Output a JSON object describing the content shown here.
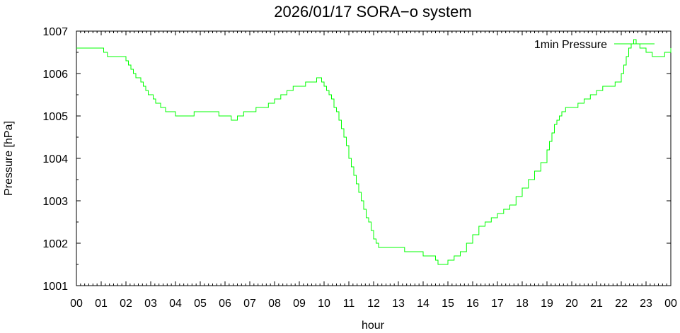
{
  "chart_data": {
    "type": "line",
    "title": "2026/01/17 SORA−o system",
    "xlabel": "hour",
    "ylabel": "Pressure [hPa]",
    "xlim": [
      0,
      24
    ],
    "ylim": [
      1001,
      1007
    ],
    "x_tick_labels": [
      "00",
      "01",
      "02",
      "03",
      "04",
      "05",
      "06",
      "07",
      "08",
      "09",
      "10",
      "11",
      "12",
      "13",
      "14",
      "15",
      "16",
      "17",
      "18",
      "19",
      "20",
      "21",
      "22",
      "23",
      "00"
    ],
    "y_ticks": [
      1001,
      1002,
      1003,
      1004,
      1005,
      1006,
      1007
    ],
    "legend_position": "top-right",
    "grid": false,
    "series": [
      {
        "name": "1min Pressure",
        "color": "#00ff00",
        "step": true,
        "x": [
          0,
          0.25,
          0.5,
          0.75,
          1.0,
          1.1,
          1.25,
          1.5,
          1.75,
          2.0,
          2.1,
          2.2,
          2.3,
          2.4,
          2.5,
          2.6,
          2.7,
          2.8,
          2.9,
          3.0,
          3.1,
          3.2,
          3.3,
          3.4,
          3.5,
          3.6,
          3.7,
          3.8,
          3.9,
          4.0,
          4.25,
          4.5,
          4.75,
          5.0,
          5.25,
          5.5,
          5.75,
          6.0,
          6.25,
          6.5,
          6.75,
          7.0,
          7.25,
          7.5,
          7.75,
          8.0,
          8.25,
          8.5,
          8.75,
          9.0,
          9.25,
          9.5,
          9.7,
          9.9,
          10.0,
          10.1,
          10.2,
          10.3,
          10.4,
          10.5,
          10.6,
          10.7,
          10.8,
          10.9,
          11.0,
          11.1,
          11.2,
          11.3,
          11.4,
          11.5,
          11.6,
          11.7,
          11.8,
          11.9,
          12.0,
          12.1,
          12.2,
          12.3,
          12.4,
          12.5,
          12.6,
          12.7,
          12.8,
          13.0,
          13.25,
          13.5,
          13.75,
          14.0,
          14.25,
          14.5,
          14.6,
          14.75,
          14.9,
          15.0,
          15.25,
          15.5,
          15.75,
          16.0,
          16.25,
          16.5,
          16.75,
          17.0,
          17.25,
          17.5,
          17.75,
          18.0,
          18.25,
          18.5,
          18.75,
          19.0,
          19.1,
          19.2,
          19.3,
          19.4,
          19.5,
          19.6,
          19.75,
          20.0,
          20.25,
          20.5,
          20.75,
          21.0,
          21.25,
          21.5,
          21.75,
          22.0,
          22.1,
          22.2,
          22.3,
          22.4,
          22.5,
          22.6,
          22.75,
          23.0,
          23.25,
          23.5,
          23.75,
          24.0
        ],
        "values": [
          1006.6,
          1006.6,
          1006.6,
          1006.6,
          1006.6,
          1006.5,
          1006.4,
          1006.4,
          1006.4,
          1006.3,
          1006.2,
          1006.1,
          1006.0,
          1005.9,
          1005.9,
          1005.8,
          1005.7,
          1005.6,
          1005.5,
          1005.5,
          1005.4,
          1005.3,
          1005.3,
          1005.2,
          1005.2,
          1005.1,
          1005.1,
          1005.1,
          1005.1,
          1005.0,
          1005.0,
          1005.0,
          1005.1,
          1005.1,
          1005.1,
          1005.1,
          1005.0,
          1005.0,
          1004.9,
          1005.0,
          1005.1,
          1005.1,
          1005.2,
          1005.2,
          1005.3,
          1005.4,
          1005.5,
          1005.6,
          1005.7,
          1005.7,
          1005.8,
          1005.8,
          1005.9,
          1005.8,
          1005.7,
          1005.6,
          1005.5,
          1005.4,
          1005.2,
          1005.1,
          1004.9,
          1004.7,
          1004.5,
          1004.3,
          1004.0,
          1003.8,
          1003.6,
          1003.4,
          1003.2,
          1003.0,
          1002.8,
          1002.6,
          1002.5,
          1002.3,
          1002.1,
          1002.0,
          1001.9,
          1001.9,
          1001.9,
          1001.9,
          1001.9,
          1001.9,
          1001.9,
          1001.9,
          1001.8,
          1001.8,
          1001.8,
          1001.7,
          1001.7,
          1001.6,
          1001.5,
          1001.5,
          1001.5,
          1001.6,
          1001.7,
          1001.8,
          1002.0,
          1002.2,
          1002.4,
          1002.5,
          1002.6,
          1002.7,
          1002.8,
          1002.9,
          1003.1,
          1003.3,
          1003.5,
          1003.7,
          1003.9,
          1004.2,
          1004.4,
          1004.6,
          1004.8,
          1004.9,
          1005.0,
          1005.1,
          1005.2,
          1005.2,
          1005.3,
          1005.4,
          1005.5,
          1005.6,
          1005.7,
          1005.7,
          1005.8,
          1006.0,
          1006.2,
          1006.4,
          1006.6,
          1006.7,
          1006.8,
          1006.7,
          1006.6,
          1006.5,
          1006.4,
          1006.4,
          1006.5,
          1006.6
        ]
      }
    ]
  }
}
